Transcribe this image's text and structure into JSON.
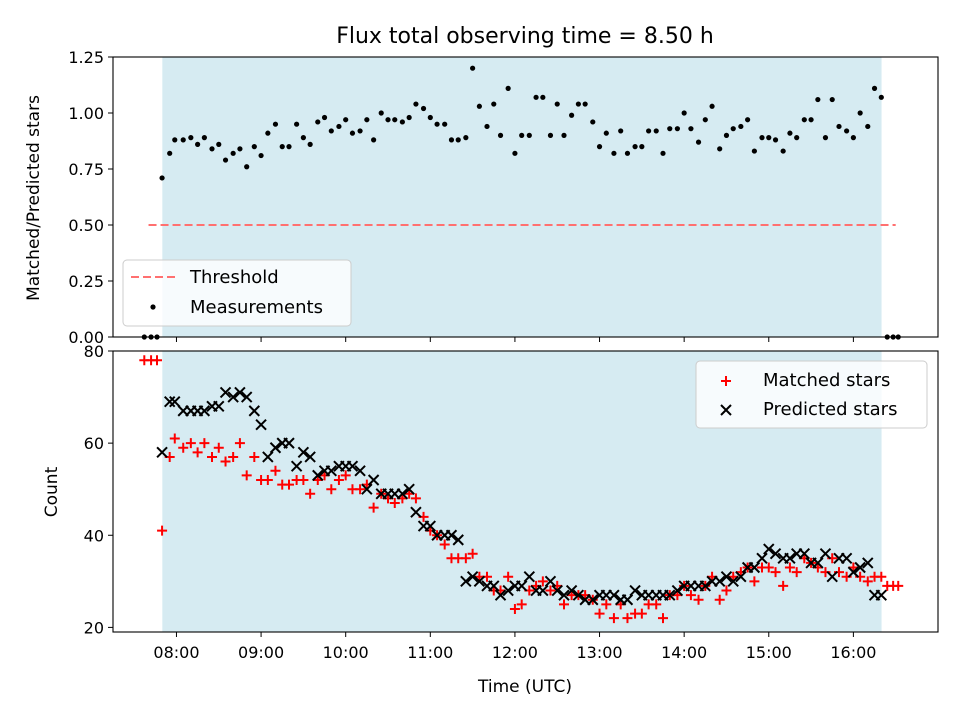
{
  "chart_data": [
    {
      "type": "scatter",
      "title": "Flux total observing time = 8.50 h",
      "ylabel": "Matched/Predicted stars",
      "xlabel": "",
      "xlim": [
        7.25,
        17.0
      ],
      "ylim": [
        0.0,
        1.25
      ],
      "yticks": [
        0.0,
        0.25,
        0.5,
        0.75,
        1.0,
        1.25
      ],
      "ytick_labels": [
        "0.00",
        "0.25",
        "0.50",
        "0.75",
        "1.00",
        "1.25"
      ],
      "shaded_span": [
        7.833,
        16.333
      ],
      "threshold": {
        "name": "Threshold",
        "value": 0.5,
        "x_range": [
          7.67,
          16.5
        ],
        "color": "#ff7070"
      },
      "legend": {
        "position": "lower-left",
        "entries": [
          "Threshold",
          "Measurements"
        ]
      },
      "series": [
        {
          "name": "Measurements",
          "color": "#000000",
          "x": [
            7.62,
            7.7,
            7.77,
            7.83,
            7.92,
            7.98,
            8.08,
            8.17,
            8.25,
            8.33,
            8.42,
            8.5,
            8.58,
            8.67,
            8.75,
            8.83,
            8.92,
            9.0,
            9.08,
            9.17,
            9.25,
            9.33,
            9.42,
            9.5,
            9.58,
            9.67,
            9.75,
            9.83,
            9.92,
            10.0,
            10.08,
            10.17,
            10.25,
            10.33,
            10.42,
            10.5,
            10.58,
            10.67,
            10.75,
            10.83,
            10.92,
            11.0,
            11.08,
            11.17,
            11.25,
            11.33,
            11.42,
            11.5,
            11.58,
            11.67,
            11.75,
            11.83,
            11.92,
            12.0,
            12.08,
            12.17,
            12.25,
            12.33,
            12.42,
            12.5,
            12.58,
            12.67,
            12.75,
            12.83,
            12.92,
            13.0,
            13.08,
            13.17,
            13.25,
            13.33,
            13.42,
            13.5,
            13.58,
            13.67,
            13.75,
            13.83,
            13.92,
            14.0,
            14.08,
            14.17,
            14.25,
            14.33,
            14.42,
            14.5,
            14.58,
            14.67,
            14.75,
            14.83,
            14.92,
            15.0,
            15.08,
            15.17,
            15.25,
            15.33,
            15.42,
            15.5,
            15.58,
            15.67,
            15.75,
            15.83,
            15.92,
            16.0,
            16.08,
            16.17,
            16.25,
            16.33,
            16.4,
            16.47,
            16.53
          ],
          "y": [
            0.0,
            0.0,
            0.0,
            0.71,
            0.82,
            0.88,
            0.88,
            0.89,
            0.86,
            0.89,
            0.84,
            0.86,
            0.79,
            0.82,
            0.84,
            0.76,
            0.85,
            0.81,
            0.91,
            0.95,
            0.85,
            0.85,
            0.95,
            0.89,
            0.86,
            0.96,
            0.98,
            0.92,
            0.94,
            0.97,
            0.91,
            0.92,
            0.97,
            0.88,
            1.0,
            0.97,
            0.97,
            0.96,
            0.98,
            1.04,
            1.02,
            0.98,
            0.95,
            0.95,
            0.88,
            0.88,
            0.89,
            1.2,
            1.03,
            0.94,
            1.04,
            0.9,
            1.11,
            0.82,
            0.9,
            0.9,
            1.07,
            1.07,
            0.9,
            1.04,
            0.9,
            0.99,
            1.04,
            1.04,
            0.96,
            0.85,
            0.91,
            0.82,
            0.92,
            0.82,
            0.85,
            0.85,
            0.92,
            0.92,
            0.82,
            0.93,
            0.93,
            1.0,
            0.93,
            0.87,
            0.97,
            1.03,
            0.84,
            0.9,
            0.93,
            0.94,
            0.97,
            0.83,
            0.89,
            0.89,
            0.88,
            0.83,
            0.91,
            0.89,
            0.97,
            0.97,
            1.06,
            0.89,
            1.06,
            0.94,
            0.92,
            0.89,
            1.0,
            0.94,
            1.11,
            1.07,
            0.0,
            0.0,
            0.0
          ]
        }
      ]
    },
    {
      "type": "scatter",
      "title": "",
      "xlabel": "Time (UTC)",
      "ylabel": "Count",
      "xlim": [
        7.25,
        17.0
      ],
      "ylim": [
        19,
        80
      ],
      "yticks": [
        20,
        40,
        60,
        80
      ],
      "ytick_labels": [
        "20",
        "40",
        "60",
        "80"
      ],
      "xticks": [
        8,
        9,
        10,
        11,
        12,
        13,
        14,
        15,
        16
      ],
      "xtick_labels": [
        "08:00",
        "09:00",
        "10:00",
        "11:00",
        "12:00",
        "13:00",
        "14:00",
        "15:00",
        "16:00"
      ],
      "shaded_span": [
        7.833,
        16.333
      ],
      "legend": {
        "position": "upper-right",
        "entries": [
          "Matched stars",
          "Predicted stars"
        ]
      },
      "series": [
        {
          "name": "Matched stars",
          "marker": "+",
          "color": "#ff0000",
          "x": [
            7.62,
            7.7,
            7.77,
            7.83,
            7.92,
            7.98,
            8.08,
            8.17,
            8.25,
            8.33,
            8.42,
            8.5,
            8.58,
            8.67,
            8.75,
            8.83,
            8.92,
            9.0,
            9.08,
            9.17,
            9.25,
            9.33,
            9.42,
            9.5,
            9.58,
            9.67,
            9.75,
            9.83,
            9.92,
            10.0,
            10.08,
            10.17,
            10.25,
            10.33,
            10.42,
            10.5,
            10.58,
            10.67,
            10.75,
            10.83,
            10.92,
            11.0,
            11.08,
            11.17,
            11.25,
            11.33,
            11.42,
            11.5,
            11.58,
            11.67,
            11.75,
            11.83,
            11.92,
            12.0,
            12.08,
            12.17,
            12.25,
            12.33,
            12.42,
            12.5,
            12.58,
            12.67,
            12.75,
            12.83,
            12.92,
            13.0,
            13.08,
            13.17,
            13.25,
            13.33,
            13.42,
            13.5,
            13.58,
            13.67,
            13.75,
            13.83,
            13.92,
            14.0,
            14.08,
            14.17,
            14.25,
            14.33,
            14.42,
            14.5,
            14.58,
            14.67,
            14.75,
            14.83,
            14.92,
            15.0,
            15.08,
            15.17,
            15.25,
            15.33,
            15.42,
            15.5,
            15.58,
            15.67,
            15.75,
            15.83,
            15.92,
            16.0,
            16.08,
            16.17,
            16.25,
            16.33,
            16.4,
            16.47,
            16.53
          ],
          "y": [
            78,
            78,
            78,
            41,
            57,
            61,
            59,
            60,
            58,
            60,
            57,
            59,
            56,
            57,
            60,
            53,
            57,
            52,
            52,
            54,
            51,
            51,
            52,
            52,
            49,
            52,
            53,
            50,
            52,
            53,
            50,
            50,
            51,
            46,
            49,
            48,
            47,
            48,
            49,
            48,
            44,
            41,
            40,
            38,
            35,
            35,
            35,
            36,
            31,
            31,
            28,
            28,
            31,
            24,
            25,
            28,
            29,
            30,
            28,
            29,
            25,
            27,
            27,
            27,
            26,
            23,
            25,
            22,
            25,
            22,
            23,
            23,
            25,
            25,
            22,
            27,
            27,
            29,
            27,
            26,
            29,
            31,
            26,
            28,
            31,
            32,
            33,
            30,
            33,
            33,
            32,
            29,
            33,
            32,
            35,
            34,
            33,
            32,
            35,
            32,
            31,
            33,
            31,
            30,
            31,
            31,
            29,
            29,
            29
          ]
        },
        {
          "name": "Predicted stars",
          "marker": "x",
          "color": "#000000",
          "x": [
            7.83,
            7.92,
            7.98,
            8.08,
            8.17,
            8.25,
            8.33,
            8.42,
            8.5,
            8.58,
            8.67,
            8.75,
            8.83,
            8.92,
            9.0,
            9.08,
            9.17,
            9.25,
            9.33,
            9.42,
            9.5,
            9.58,
            9.67,
            9.75,
            9.83,
            9.92,
            10.0,
            10.08,
            10.17,
            10.25,
            10.33,
            10.42,
            10.5,
            10.58,
            10.67,
            10.75,
            10.83,
            10.92,
            11.0,
            11.08,
            11.17,
            11.25,
            11.33,
            11.42,
            11.5,
            11.58,
            11.67,
            11.75,
            11.83,
            11.92,
            12.0,
            12.08,
            12.17,
            12.25,
            12.33,
            12.42,
            12.5,
            12.58,
            12.67,
            12.75,
            12.83,
            12.92,
            13.0,
            13.08,
            13.17,
            13.25,
            13.33,
            13.42,
            13.5,
            13.58,
            13.67,
            13.75,
            13.83,
            13.92,
            14.0,
            14.08,
            14.17,
            14.25,
            14.33,
            14.42,
            14.5,
            14.58,
            14.67,
            14.75,
            14.83,
            14.92,
            15.0,
            15.08,
            15.17,
            15.25,
            15.33,
            15.42,
            15.5,
            15.58,
            15.67,
            15.75,
            15.83,
            15.92,
            16.0,
            16.08,
            16.17,
            16.25,
            16.33
          ],
          "y": [
            58,
            69,
            69,
            67,
            67,
            67,
            67,
            68,
            68,
            71,
            70,
            71,
            70,
            67,
            64,
            57,
            59,
            60,
            60,
            55,
            58,
            57,
            53,
            54,
            54,
            55,
            55,
            55,
            54,
            50,
            52,
            49,
            49,
            49,
            49,
            50,
            45,
            42,
            42,
            40,
            40,
            40,
            39,
            30,
            31,
            30,
            29,
            29,
            27,
            28,
            29,
            29,
            31,
            28,
            28,
            30,
            28,
            27,
            28,
            27,
            26,
            26,
            27,
            27,
            27,
            26,
            26,
            28,
            27,
            27,
            27,
            27,
            27,
            28,
            29,
            29,
            29,
            29,
            30,
            30,
            31,
            30,
            31,
            33,
            33,
            35,
            37,
            36,
            35,
            35,
            36,
            36,
            34,
            34,
            36,
            31,
            35,
            35,
            32,
            33,
            34,
            27,
            27
          ]
        }
      ]
    }
  ]
}
